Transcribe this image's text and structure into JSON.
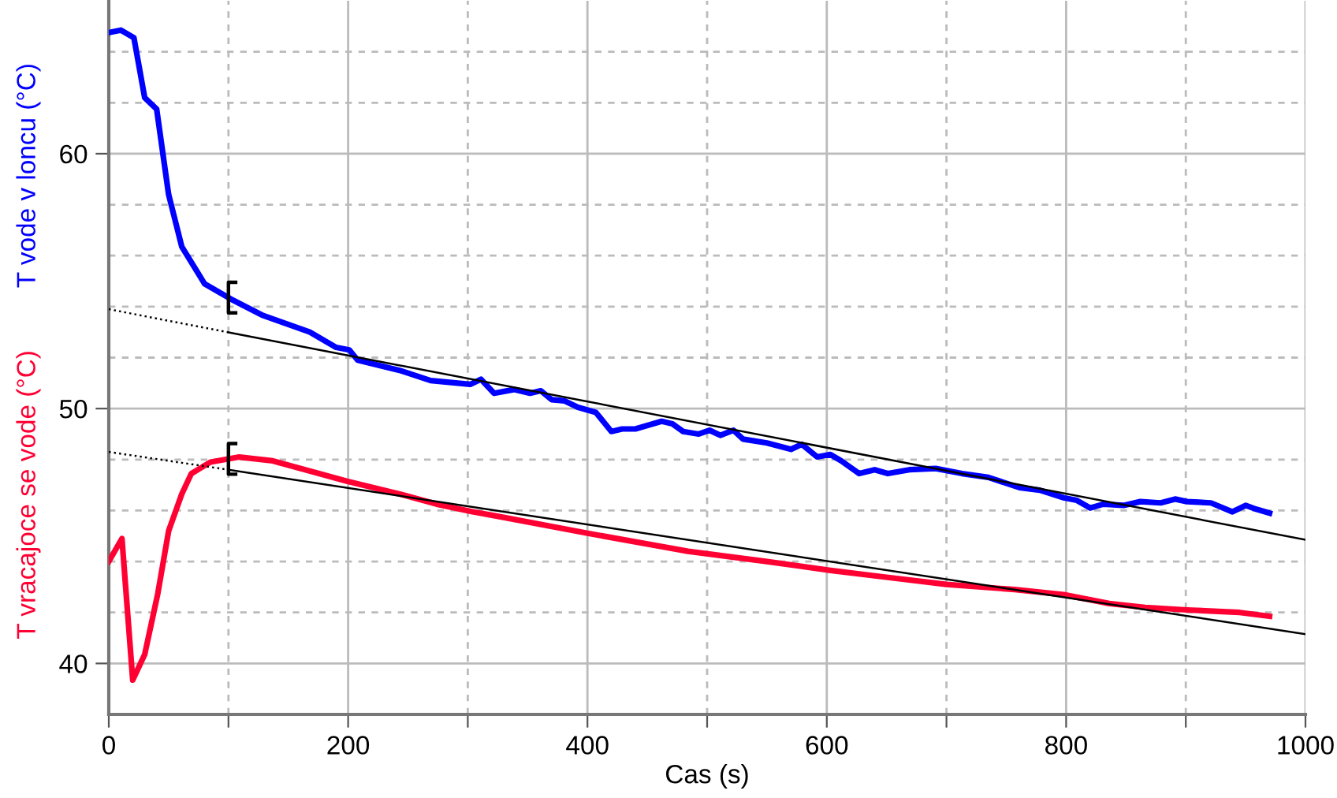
{
  "chart_data": {
    "type": "line",
    "xlabel": "Cas (s)",
    "xlim": [
      0,
      1000
    ],
    "ylim": [
      38,
      66
    ],
    "xticks": [
      0,
      {
        "value": 100,
        "label": null
      },
      200,
      {
        "value": 300,
        "label": null
      },
      400,
      {
        "value": 500,
        "label": null
      },
      600,
      {
        "value": 700,
        "label": null
      },
      800,
      {
        "value": 900,
        "label": null
      },
      1000
    ],
    "yticks": [
      {
        "value": 38,
        "label": null
      },
      40,
      {
        "value": 42,
        "label": null
      },
      {
        "value": 44,
        "label": null
      },
      {
        "value": 46,
        "label": null
      },
      {
        "value": 48,
        "label": null
      },
      50,
      {
        "value": 52,
        "label": null
      },
      {
        "value": 54,
        "label": null
      },
      {
        "value": 56,
        "label": null
      },
      {
        "value": 58,
        "label": null
      },
      60,
      {
        "value": 62,
        "label": null
      },
      {
        "value": 64,
        "label": null
      }
    ],
    "grid": true,
    "marker": "none",
    "series": [
      {
        "name": "T vode v loncu (°C)",
        "color": "#0000ff",
        "line_style": "solid",
        "x": [
          0,
          10,
          21,
          30,
          40,
          50,
          61,
          80,
          102,
          129,
          168,
          190,
          201,
          208,
          243,
          269,
          302,
          311,
          322,
          339,
          352,
          361,
          370,
          381,
          392,
          407,
          420,
          429,
          440,
          462,
          471,
          480,
          493,
          502,
          511,
          522,
          530,
          550,
          570,
          579,
          592,
          603,
          612,
          627,
          640,
          651,
          669,
          691,
          713,
          735,
          761,
          778,
          798,
          809,
          820,
          831,
          848,
          862,
          879,
          891,
          901,
          921,
          939,
          950,
          959,
          970
        ],
        "values": [
          64.75,
          64.85,
          64.55,
          62.2,
          61.75,
          58.4,
          56.35,
          54.9,
          54.3,
          53.65,
          53.0,
          52.4,
          52.3,
          51.9,
          51.5,
          51.1,
          50.95,
          51.15,
          50.6,
          50.75,
          50.6,
          50.7,
          50.35,
          50.3,
          50.05,
          49.85,
          49.1,
          49.2,
          49.2,
          49.5,
          49.4,
          49.1,
          49.0,
          49.15,
          48.95,
          49.15,
          48.8,
          48.65,
          48.4,
          48.6,
          48.1,
          48.2,
          47.95,
          47.45,
          47.6,
          47.45,
          47.6,
          47.65,
          47.45,
          47.3,
          46.9,
          46.8,
          46.5,
          46.4,
          46.1,
          46.25,
          46.2,
          46.35,
          46.3,
          46.45,
          46.35,
          46.3,
          45.95,
          46.2,
          46.05,
          45.9
        ]
      },
      {
        "name": "T vracajoce se vode (°C)",
        "color": "#ff0033",
        "line_style": "solid",
        "x": [
          0,
          11,
          20,
          30,
          41,
          50,
          61,
          69,
          85,
          109,
          137,
          172,
          199,
          243,
          274,
          304,
          322,
          401,
          484,
          550,
          603,
          647,
          700,
          757,
          798,
          836,
          866,
          901,
          945,
          970
        ],
        "values": [
          44.0,
          44.9,
          39.35,
          40.35,
          42.75,
          45.2,
          46.65,
          47.45,
          47.9,
          48.1,
          47.95,
          47.5,
          47.15,
          46.65,
          46.25,
          45.95,
          45.8,
          45.1,
          44.4,
          44.0,
          43.65,
          43.4,
          43.1,
          42.9,
          42.7,
          42.35,
          42.2,
          42.1,
          42.0,
          41.85
        ]
      },
      {
        "color": "#000000",
        "line_style": "dotted",
        "x": [
          0,
          100
        ],
        "values": [
          53.9,
          52.99
        ]
      },
      {
        "color": "#000000",
        "line_style": "solid",
        "x": [
          100,
          1000
        ],
        "values": [
          52.99,
          44.85
        ]
      },
      {
        "color": "#000000",
        "line_style": "dotted",
        "x": [
          0,
          100
        ],
        "values": [
          48.3,
          47.6
        ]
      },
      {
        "color": "#000000",
        "line_style": "solid",
        "x": [
          100,
          1000
        ],
        "values": [
          47.6,
          41.15
        ]
      }
    ]
  }
}
